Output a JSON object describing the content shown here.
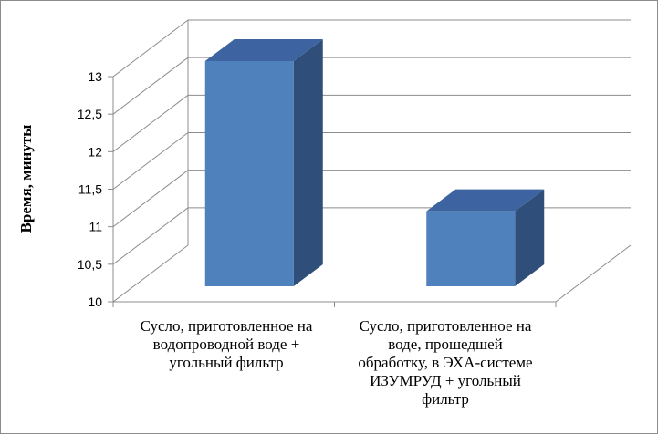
{
  "chart_data": {
    "type": "bar",
    "style": "3d-column",
    "categories": [
      "Сусло, приготовленное на водопроводной воде + угольный фильтр",
      "Сусло, приготовленное на воде, прошедшей обработку, в ЭХА-системе ИЗУМРУД + угольный фильтр"
    ],
    "values": [
      13,
      11
    ],
    "title": "",
    "xlabel": "",
    "ylabel": "Время, минуты",
    "ylim": [
      10,
      13
    ],
    "yticks": [
      10,
      10.5,
      11,
      11.5,
      12,
      12.5,
      13
    ],
    "ytick_labels": [
      "10",
      "10,5",
      "11",
      "11,5",
      "12",
      "12,5",
      "13"
    ],
    "grid": true,
    "legend": "none",
    "colors": {
      "front": "#4f81bd",
      "top": "#3d64a0",
      "side": "#2f4f7a",
      "grid": "#8c8c8c"
    }
  },
  "labels": {
    "cat1_lines": [
      "Сусло, приготовленное на",
      "водопроводной воде +",
      "угольный фильтр"
    ],
    "cat2_lines": [
      "Сусло, приготовленное на",
      "воде, прошедшей",
      "обработку, в ЭХА-системе",
      "ИЗУМРУД + угольный",
      "фильтр"
    ]
  }
}
